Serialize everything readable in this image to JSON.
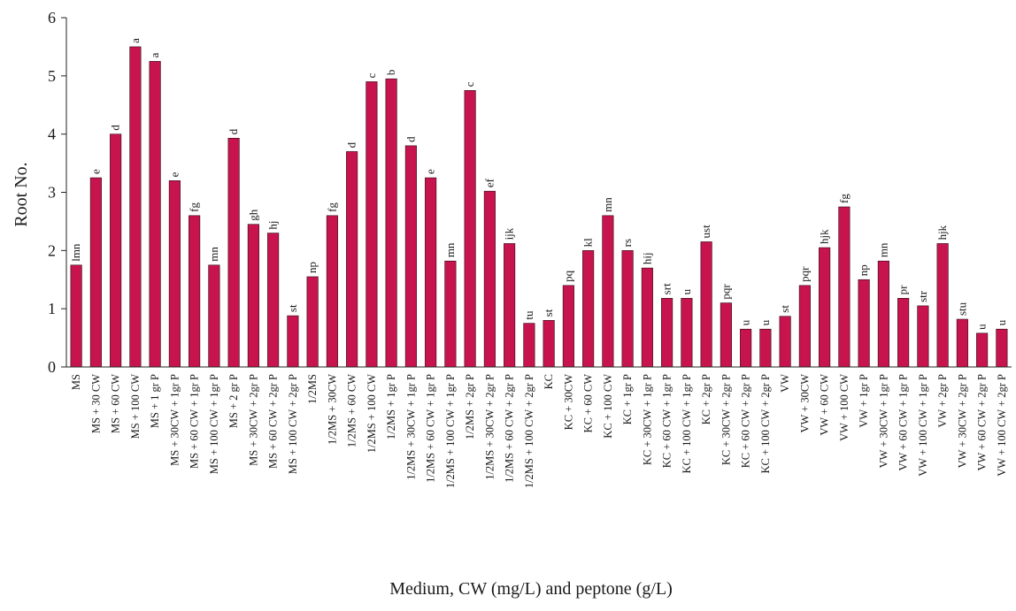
{
  "chart_data": {
    "type": "bar",
    "title": "",
    "xlabel": "Medium, CW (mg/L)  and peptone (g/L)",
    "ylabel": "Root No.",
    "ylim": [
      0,
      6
    ],
    "yticks": [
      0,
      1,
      2,
      3,
      4,
      5,
      6
    ],
    "grid": false,
    "legend": "none",
    "bar_color": "#c8144e",
    "categories": [
      "MS",
      "MS + 30 CW",
      "MS + 60 CW",
      "MS + 100 CW",
      "MS + 1 gr P",
      "MS + 30CW + 1gr P",
      "MS + 60 CW + 1gr P",
      "MS + 100 CW + 1gr P",
      "MS + 2 gr P",
      "MS + 30CW + 2gr P",
      "MS + 60 CW + 2gr P",
      "MS + 100 CW + 2gr P",
      "1/2MS",
      "1/2MS + 30CW",
      "1/2MS + 60 CW",
      "1/2MS + 100 CW",
      "1/2MS + 1gr P",
      "1/2MS + 30CW + 1gr P",
      "1/2MS + 60 CW + 1gr P",
      "1/2MS + 100 CW + 1gr P",
      "1/2MS + 2gr P",
      "1/2MS + 30CW + 2gr P",
      "1/2MS + 60 CW + 2gr P",
      "1/2MS + 100 CW + 2gr P",
      "KC",
      "KC + 30CW",
      "KC + 60 CW",
      "KC + 100 CW",
      "KC + 1gr P",
      "KC + 30CW + 1gr P",
      "KC + 60 CW + 1gr P",
      "KC + 100 CW + 1gr P",
      "KC + 2gr P",
      "KC + 30CW + 2gr P",
      "KC + 60 CW + 2gr P",
      "KC + 100 CW + 2gr P",
      "VW",
      "VW + 30CW",
      "VW + 60 CW",
      "VW + 100 CW",
      "VW + 1gr P",
      "VW + 30CW + 1gr P",
      "VW + 60 CW + 1gr P",
      "VW + 100 CW + 1gr P",
      "VW + 2gr P",
      "VW + 30CW + 2gr P",
      "VW + 60 CW + 2gr P",
      "VW + 100 CW + 2gr P"
    ],
    "values": [
      1.75,
      3.25,
      4.0,
      5.5,
      5.25,
      3.2,
      2.6,
      1.75,
      3.93,
      2.45,
      2.3,
      0.88,
      1.55,
      2.6,
      3.7,
      4.9,
      4.95,
      3.8,
      3.25,
      1.82,
      4.75,
      3.02,
      2.12,
      0.75,
      0.8,
      1.4,
      2.0,
      2.6,
      2.0,
      1.7,
      1.18,
      1.18,
      2.15,
      1.1,
      0.65,
      0.65,
      0.87,
      1.4,
      2.05,
      2.75,
      1.5,
      1.82,
      1.18,
      1.05,
      2.12,
      0.82,
      0.58,
      0.65
    ],
    "significance_letters": [
      "lmn",
      "e",
      "d",
      "a",
      "a",
      "e",
      "fg",
      "mn",
      "d",
      "gh",
      "hj",
      "st",
      "np",
      "fg",
      "d",
      "c",
      "b",
      "d",
      "e",
      "mn",
      "c",
      "ef",
      "ijk",
      "tu",
      "st",
      "pq",
      "kl",
      "mn",
      "rs",
      "hij",
      "srt",
      "u",
      "ust",
      "pqr",
      "u",
      "u",
      "st",
      "pqr",
      "hjk",
      "fg",
      "np",
      "mn",
      "pr",
      "str",
      "hjk",
      "stu",
      "u",
      "u"
    ]
  }
}
